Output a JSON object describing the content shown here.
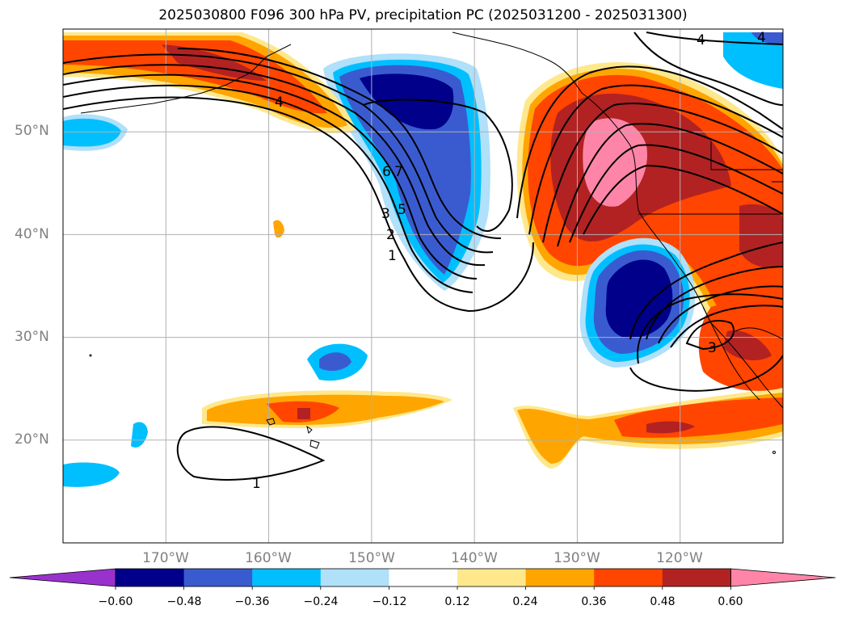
{
  "title": "2025030800 F096 300 hPa PV, precipitation PC (2025031200 - 2025031300)",
  "map": {
    "lon_range": [
      -180,
      -110
    ],
    "lat_range": [
      10,
      60
    ],
    "lon_ticks": [
      {
        "value": -170,
        "label": "170°W"
      },
      {
        "value": -160,
        "label": "160°W"
      },
      {
        "value": -150,
        "label": "150°W"
      },
      {
        "value": -140,
        "label": "140°W"
      },
      {
        "value": -130,
        "label": "130°W"
      },
      {
        "value": -120,
        "label": "120°W"
      }
    ],
    "lat_ticks": [
      {
        "value": 20,
        "label": "20°N"
      },
      {
        "value": 30,
        "label": "30°N"
      },
      {
        "value": 40,
        "label": "40°N"
      },
      {
        "value": 50,
        "label": "50°N"
      }
    ],
    "gridlines": true,
    "contour_labels": [
      "4",
      "4",
      "4",
      "6",
      "7",
      "5",
      "3",
      "2",
      "1",
      "3",
      "1"
    ]
  },
  "colorbar": {
    "ticks": [
      "−0.60",
      "−0.48",
      "−0.36",
      "−0.24",
      "−0.12",
      "0.12",
      "0.24",
      "0.36",
      "0.48",
      "0.60"
    ],
    "colors": [
      "#9932CC",
      "#00008B",
      "#3A5BD0",
      "#00BFFF",
      "#B0E0FA",
      "#FFFFFF",
      "#FFE88C",
      "#FFA500",
      "#FF4500",
      "#B22222",
      "#FF85A8"
    ]
  }
}
